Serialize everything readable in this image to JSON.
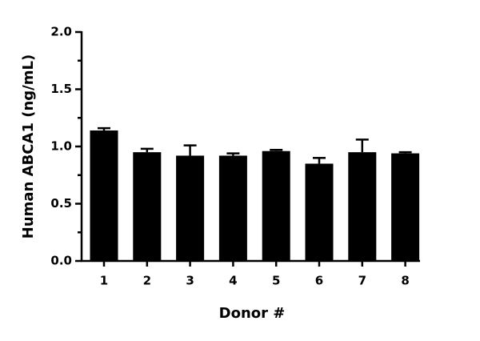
{
  "chart_data": {
    "type": "bar",
    "xlabel": "Donor #",
    "ylabel": "Human ABCA1 (ng/mL)",
    "categories": [
      "1",
      "2",
      "3",
      "4",
      "5",
      "6",
      "7",
      "8"
    ],
    "values": [
      1.14,
      0.95,
      0.92,
      0.92,
      0.96,
      0.85,
      0.95,
      0.94
    ],
    "errors": [
      0.02,
      0.03,
      0.09,
      0.02,
      0.01,
      0.05,
      0.11,
      0.01
    ],
    "color": "#000000",
    "ylim": [
      0,
      2.0
    ],
    "yticks": [
      {
        "value": 0,
        "label": "0.0"
      },
      0.5,
      {
        "value": 1,
        "label": "1.0"
      },
      1.5,
      {
        "value": 2,
        "label": "2.0"
      }
    ],
    "yminorticks": [
      0.25,
      0.75,
      1.25,
      1.75
    ],
    "grid": false
  }
}
